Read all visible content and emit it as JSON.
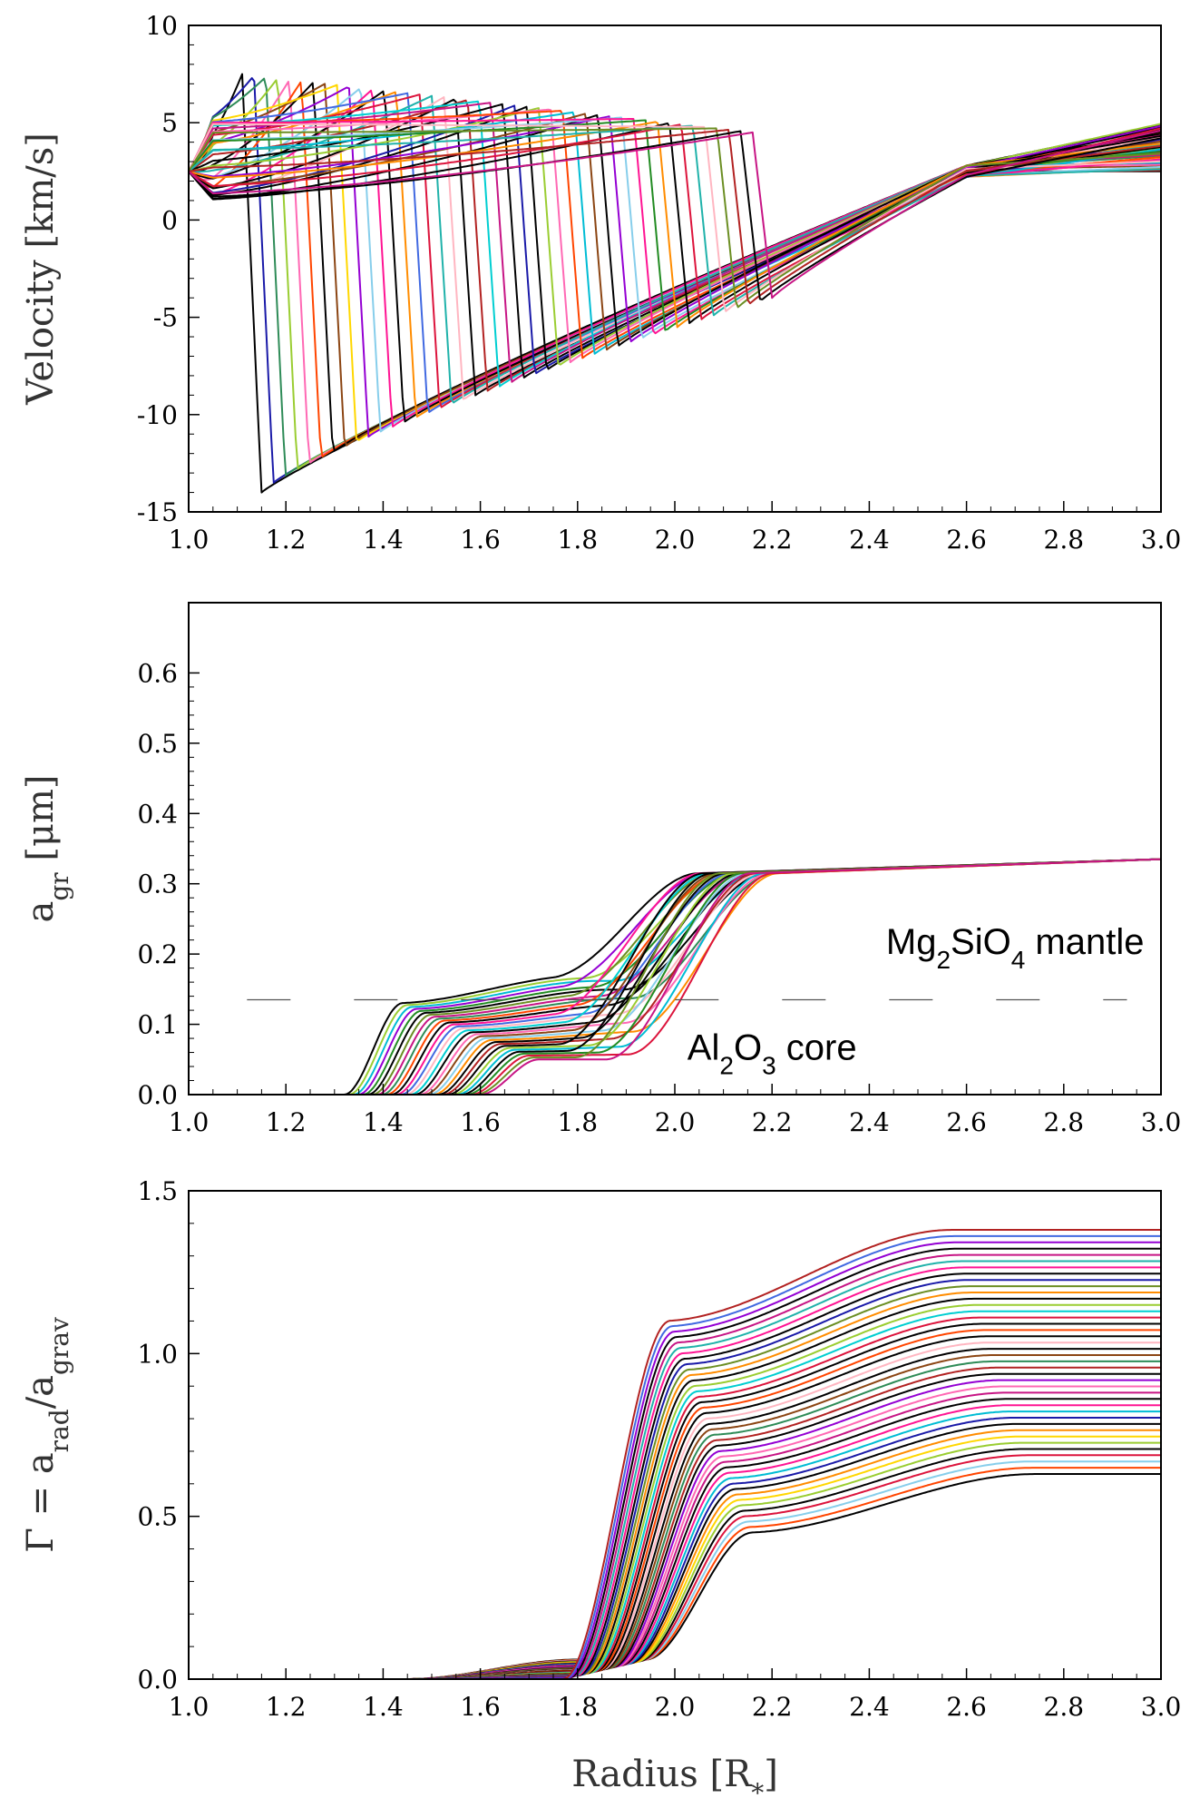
{
  "chart_data": [
    {
      "type": "line",
      "id": "velocity",
      "title": "",
      "xlabel": "",
      "ylabel": "Velocity [km/s]",
      "xlim": [
        1.0,
        3.0
      ],
      "ylim": [
        -15,
        10
      ],
      "xticks": [
        "1.0",
        "1.2",
        "1.4",
        "1.6",
        "1.8",
        "2.0",
        "2.2",
        "2.4",
        "2.6",
        "2.8",
        "3.0"
      ],
      "yticks": [
        "-15",
        "-10",
        "-5",
        "0",
        "5",
        "10"
      ],
      "family": {
        "count": 44,
        "description": "velocity profiles at successive phases",
        "shock_radius_range": [
          1.15,
          2.2
        ],
        "shock_peak_range": [
          7.5,
          4.5
        ],
        "preshock_min": [
          -14,
          -4
        ],
        "outer_value_at_3": [
          2.5,
          5.0
        ]
      }
    },
    {
      "type": "line",
      "id": "grain_radius",
      "title": "",
      "xlabel": "",
      "ylabel": "a_gr [μm]",
      "ylabel_parts": {
        "main": "a",
        "sub": "gr",
        "unit": " [μm]"
      },
      "xlim": [
        1.0,
        3.0
      ],
      "ylim": [
        0.0,
        0.7
      ],
      "xticks": [
        "1.0",
        "1.2",
        "1.4",
        "1.6",
        "1.8",
        "2.0",
        "2.2",
        "2.4",
        "2.6",
        "2.8",
        "3.0"
      ],
      "yticks": [
        "0.0",
        "0.1",
        "0.2",
        "0.3",
        "0.4",
        "0.5",
        "0.6"
      ],
      "core_mantle_boundary": 0.135,
      "family": {
        "count": 30,
        "onset_range": [
          1.32,
          1.6
        ],
        "core_plateau": [
          0.05,
          0.13
        ],
        "mantle_growth_start": [
          1.75,
          1.92
        ],
        "final_value": 0.335
      },
      "annotations": [
        {
          "text_parts": [
            "Mg",
            "2",
            "SiO",
            "4",
            " mantle"
          ],
          "x": 2.7,
          "y": 0.2
        },
        {
          "text_parts": [
            "Al",
            "2",
            "O",
            "3",
            " core"
          ],
          "x": 2.2,
          "y": 0.05
        }
      ]
    },
    {
      "type": "line",
      "id": "gamma",
      "title": "",
      "xlabel": "Radius [R*]",
      "xlabel_parts": {
        "main": "Radius [R",
        "sub": "*",
        "end": "]"
      },
      "ylabel": "Γ = a_rad/a_grav",
      "ylabel_parts": {
        "a": "Γ = a",
        "sub1": "rad",
        "b": "/a",
        "sub2": "grav"
      },
      "xlim": [
        1.0,
        3.0
      ],
      "ylim": [
        0.0,
        1.5
      ],
      "xticks": [
        "1.0",
        "1.2",
        "1.4",
        "1.6",
        "1.8",
        "2.0",
        "2.2",
        "2.4",
        "2.6",
        "2.8",
        "3.0"
      ],
      "yticks": [
        "0.0",
        "0.5",
        "1.0",
        "1.5"
      ],
      "family": {
        "count": 40,
        "rise_radius_range": [
          1.85,
          2.02
        ],
        "plateau_range": [
          0.63,
          1.38
        ],
        "pre_rise_level": [
          0.0,
          0.06
        ]
      }
    }
  ],
  "palette": [
    "#000000",
    "#1a1aa8",
    "#2e8b57",
    "#9acd32",
    "#ff69b4",
    "#ff4500",
    "#00bcd4",
    "#8b4513",
    "#ffd700",
    "#9400d3",
    "#87ceeb",
    "#ff1493",
    "#228b22",
    "#ff8c00",
    "#4169e1",
    "#dc143c",
    "#20b2aa",
    "#ffb6c1",
    "#6b8e23",
    "#b22222",
    "#00ced1",
    "#c71585"
  ]
}
